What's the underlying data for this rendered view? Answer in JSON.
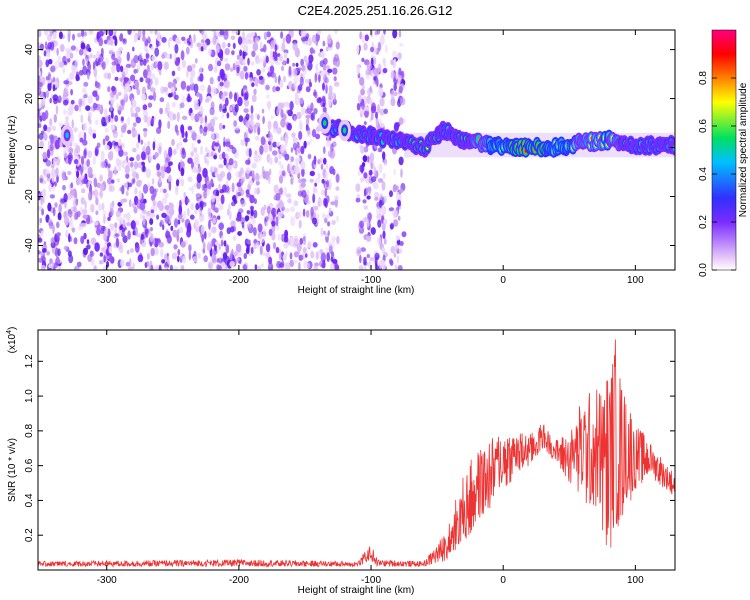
{
  "title": "C2E4.2025.251.16.26.G12",
  "chart_data": [
    {
      "type": "heatmap",
      "xlabel": "Height of straight line (km)",
      "ylabel": "Frequency (Hz)",
      "xlim": [
        -352,
        130
      ],
      "ylim": [
        -50,
        48
      ],
      "xticks": [
        -300,
        -200,
        -100,
        0,
        100
      ],
      "xtick_labels": [
        "-300",
        "-200",
        "-100",
        "0",
        "100"
      ],
      "yticks": [
        -40,
        -20,
        0,
        20,
        40
      ],
      "ytick_labels": [
        "-40",
        "-20",
        "0",
        "20",
        "40"
      ],
      "colorbar": {
        "label": "Normalized spectral amplitude",
        "range": [
          0,
          1
        ],
        "ticks": [
          0.0,
          0.2,
          0.4,
          0.6,
          0.8
        ],
        "tick_labels": [
          "0.0",
          "0.2",
          "0.4",
          "0.6",
          "0.8"
        ],
        "colors": [
          "#ffffff",
          "#e8c8f8",
          "#7a2cff",
          "#3030ff",
          "#00c0ff",
          "#00e060",
          "#ffff00",
          "#ff8000",
          "#ff0000",
          "#ff0080"
        ]
      },
      "noise_region_x": [
        -352,
        -75
      ],
      "noise_gaps_x": [
        [
          -125,
          -110
        ],
        [
          -88,
          -85
        ]
      ],
      "signal_track": [
        {
          "x": -330,
          "y": 5,
          "amp": 0.45
        },
        {
          "x": -135,
          "y": 9,
          "amp": 0.55
        },
        {
          "x": -120,
          "y": 7,
          "amp": 0.5
        },
        {
          "x": -75,
          "y": 2,
          "amp": 0.6
        },
        {
          "x": -60,
          "y": 0,
          "amp": 0.7
        },
        {
          "x": -45,
          "y": 7,
          "amp": 0.6
        },
        {
          "x": -30,
          "y": 3,
          "amp": 0.65
        },
        {
          "x": -10,
          "y": 1,
          "amp": 0.8
        },
        {
          "x": 10,
          "y": 0,
          "amp": 0.95
        },
        {
          "x": 40,
          "y": 0,
          "amp": 0.9
        },
        {
          "x": 60,
          "y": 2,
          "amp": 0.75
        },
        {
          "x": 80,
          "y": 3,
          "amp": 0.8
        },
        {
          "x": 100,
          "y": 1,
          "amp": 0.6
        },
        {
          "x": 130,
          "y": 1,
          "amp": 0.5
        }
      ]
    },
    {
      "type": "line",
      "xlabel": "Height of straight line (km)",
      "ylabel": "SNR (10 * v/v)",
      "scale_label": "(x10",
      "scale_exp": "4",
      "xlim": [
        -352,
        130
      ],
      "ylim": [
        0,
        1.38
      ],
      "xticks": [
        -300,
        -200,
        -100,
        0,
        100
      ],
      "xtick_labels": [
        "-300",
        "-200",
        "-100",
        "0",
        "100"
      ],
      "yticks": [
        0.2,
        0.4,
        0.6,
        0.8,
        1.0,
        1.2
      ],
      "ytick_labels": [
        "0.2",
        "0.4",
        "0.6",
        "0.8",
        "1.0",
        "1.2"
      ],
      "color": "#ee3333",
      "envelope": {
        "x": [
          -352,
          -200,
          -110,
          -100,
          -95,
          -60,
          -45,
          -30,
          -20,
          -10,
          0,
          10,
          20,
          30,
          40,
          50,
          60,
          70,
          80,
          85,
          90,
          100,
          110,
          120,
          130
        ],
        "lo": [
          0.02,
          0.02,
          0.02,
          0.05,
          0.02,
          0.02,
          0.05,
          0.15,
          0.25,
          0.35,
          0.45,
          0.55,
          0.6,
          0.7,
          0.62,
          0.5,
          0.4,
          0.3,
          0.1,
          0.2,
          0.3,
          0.45,
          0.55,
          0.48,
          0.42
        ],
        "hi": [
          0.05,
          0.06,
          0.05,
          0.15,
          0.06,
          0.05,
          0.2,
          0.55,
          0.7,
          0.75,
          0.82,
          0.8,
          0.78,
          0.85,
          0.75,
          0.8,
          1.0,
          1.05,
          1.15,
          1.38,
          1.1,
          0.85,
          0.75,
          0.65,
          0.55
        ]
      }
    }
  ]
}
